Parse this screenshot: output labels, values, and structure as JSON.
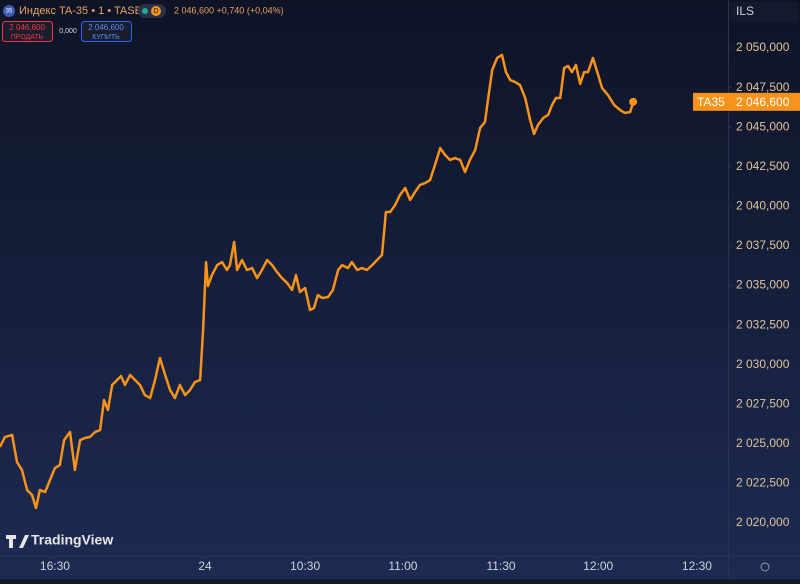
{
  "chart_data": {
    "type": "line",
    "title": "Индекс TA-35 • 1 • TASE",
    "symbol_badge": "35",
    "interval_badge": "D",
    "quote_text": "2 046,600 +0,740 (+0,04%)",
    "sell_button": {
      "price": "2 046,600",
      "label": "ПРОДАТЬ"
    },
    "spread": "0,000",
    "buy_button": {
      "price": "2 046,600",
      "label": "КУПИТЬ"
    },
    "currency": "ILS",
    "brand": "TradingView",
    "color": "#f7931a",
    "grid": false,
    "x": [
      0,
      1.5,
      3.7,
      5.2,
      6.7,
      8.3,
      9.8,
      11.0,
      12.2,
      13.8,
      15.3,
      16.8,
      18.3,
      19.6,
      21.4,
      22.9,
      24.5,
      26.0,
      27.5,
      29.1,
      30.6,
      31.8,
      33.0,
      34.3,
      35.8,
      37.0,
      38.2,
      39.8,
      41.3,
      42.8,
      44.3,
      45.9,
      47.4,
      48.9,
      50.5,
      52.0,
      53.5,
      55.0,
      56.6,
      58.1,
      59.6,
      61.2,
      62.1,
      63.0,
      63.6,
      64.8,
      66.4,
      67.9,
      69.4,
      70.3,
      71.6,
      72.5,
      74.0,
      75.5,
      77.1,
      78.6,
      80.1,
      81.7,
      83.2,
      84.7,
      86.2,
      87.8,
      89.3,
      90.5,
      91.7,
      93.3,
      94.8,
      96.0,
      97.2,
      98.5,
      100.3,
      101.8,
      103.4,
      104.6,
      106.4,
      107.6,
      109.2,
      110.7,
      112.2,
      113.8,
      115.3,
      116.8,
      118.0,
      119.3,
      120.8,
      122.3,
      123.9,
      125.4,
      126.9,
      128.4,
      130.0,
      131.5,
      133.0,
      134.6,
      136.1,
      137.6,
      139.1,
      140.7,
      142.2,
      143.7,
      145.3,
      146.8,
      148.3,
      149.2,
      150.5,
      152.0,
      153.5,
      154.7,
      156.0,
      157.5,
      159.0,
      160.6,
      162.1,
      163.3,
      164.5,
      166.1,
      167.6,
      168.8,
      170.0,
      171.3,
      172.5,
      173.7,
      174.9,
      176.1,
      177.4,
      178.6,
      179.8,
      181.3,
      182.9,
      184.1,
      185.9,
      187.8,
      189.6,
      191.1,
      192.7,
      193.6
    ],
    "values": [
      2024800,
      2025430,
      2025560,
      2023850,
      2023350,
      2022080,
      2021770,
      2020950,
      2022080,
      2021960,
      2022720,
      2023470,
      2023660,
      2025240,
      2025750,
      2023350,
      2025240,
      2025370,
      2025430,
      2025750,
      2025870,
      2027770,
      2027140,
      2028720,
      2029030,
      2029280,
      2028720,
      2029350,
      2029030,
      2028720,
      2028080,
      2027890,
      2029030,
      2030420,
      2029350,
      2028400,
      2027890,
      2028720,
      2028080,
      2028400,
      2028900,
      2029030,
      2032190,
      2036480,
      2034970,
      2035660,
      2036290,
      2036480,
      2035980,
      2036290,
      2037750,
      2035980,
      2036610,
      2035980,
      2036100,
      2035470,
      2035980,
      2036610,
      2036290,
      2035850,
      2035470,
      2035160,
      2034720,
      2035660,
      2034590,
      2034840,
      2033450,
      2033580,
      2034400,
      2034210,
      2034270,
      2034720,
      2035980,
      2036290,
      2036100,
      2036480,
      2035980,
      2036100,
      2035980,
      2036290,
      2036610,
      2036930,
      2039640,
      2039640,
      2040080,
      2040720,
      2041160,
      2040400,
      2040900,
      2041350,
      2041470,
      2041660,
      2042610,
      2043680,
      2043240,
      2042930,
      2043050,
      2042930,
      2042170,
      2042930,
      2043560,
      2044950,
      2045330,
      2046720,
      2048610,
      2049370,
      2049560,
      2048480,
      2047980,
      2047850,
      2047660,
      2046840,
      2045450,
      2044570,
      2045140,
      2045580,
      2045770,
      2046400,
      2046840,
      2046840,
      2048740,
      2048860,
      2048480,
      2048930,
      2047730,
      2048480,
      2048480,
      2049370,
      2048300,
      2047470,
      2047030,
      2046400,
      2046080,
      2045900,
      2045960,
      2046600
    ],
    "price_line": {
      "label": "TA35",
      "value": 2046600,
      "value_label": "2 046,600"
    },
    "xlim": [
      0,
      222.6
    ],
    "xticks": [
      {
        "value": 16.8,
        "label": "16:30"
      },
      {
        "value": 62.7,
        "label": "24"
      },
      {
        "value": 93.3,
        "label": "10:30"
      },
      {
        "value": 123.2,
        "label": "11:00"
      },
      {
        "value": 153.2,
        "label": "11:30"
      },
      {
        "value": 182.9,
        "label": "12:00"
      },
      {
        "value": 213.1,
        "label": "12:30"
      }
    ],
    "ylim": [
      2017916,
      2053032
    ],
    "yticks": [
      {
        "value": 2020000,
        "label": "2 020,000"
      },
      {
        "value": 2022500,
        "label": "2 022,500"
      },
      {
        "value": 2025000,
        "label": "2 025,000"
      },
      {
        "value": 2027500,
        "label": "2 027,500"
      },
      {
        "value": 2030000,
        "label": "2 030,000"
      },
      {
        "value": 2032500,
        "label": "2 032,500"
      },
      {
        "value": 2035000,
        "label": "2 035,000"
      },
      {
        "value": 2037500,
        "label": "2 037,500"
      },
      {
        "value": 2040000,
        "label": "2 040,000"
      },
      {
        "value": 2042500,
        "label": "2 042,500"
      },
      {
        "value": 2045000,
        "label": "2 045,000"
      },
      {
        "value": 2047500,
        "label": "2 047,500"
      },
      {
        "value": 2050000,
        "label": "2 050,000"
      }
    ]
  }
}
